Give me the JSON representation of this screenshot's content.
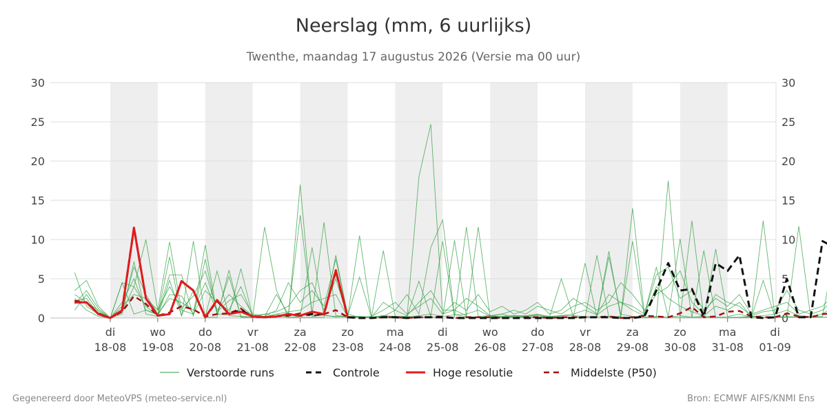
{
  "title": "Neerslag (mm, 6 uurlijks)",
  "subtitle": "Twenthe, maandag 17 augustus 2026 (Versie ma 00 uur)",
  "footer_left": "Gegenereerd door MeteoVPS (meteo-service.nl)",
  "footer_right": "Bron: ECMWF AIFS/KNMI Ens",
  "colors": {
    "ensemble": "#2e9e3e",
    "control": "#111111",
    "high_res": "#e31a1c",
    "median": "#a01010",
    "weekend_band": "#eeeeee",
    "grid": "#dddddd"
  },
  "chart_data": {
    "type": "line",
    "title": "Neerslag (mm, 6 uurlijks)",
    "subtitle": "Twenthe, maandag 17 augustus 2026 (Versie ma 00 uur)",
    "ylim": [
      0,
      30
    ],
    "yticks": [
      0,
      5,
      10,
      15,
      20,
      25,
      30
    ],
    "xlim": [
      "2026-08-17 06:00",
      "2026-09-01 00:00"
    ],
    "x_step_hours": 6,
    "x_start": "2026-08-17 06:00",
    "x_ticks": [
      {
        "day": "di",
        "date": "18-08"
      },
      {
        "day": "wo",
        "date": "19-08"
      },
      {
        "day": "do",
        "date": "20-08"
      },
      {
        "day": "vr",
        "date": "21-08"
      },
      {
        "day": "za",
        "date": "22-08"
      },
      {
        "day": "zo",
        "date": "23-08"
      },
      {
        "day": "ma",
        "date": "24-08"
      },
      {
        "day": "di",
        "date": "25-08"
      },
      {
        "day": "wo",
        "date": "26-08"
      },
      {
        "day": "do",
        "date": "27-08"
      },
      {
        "day": "vr",
        "date": "28-08"
      },
      {
        "day": "za",
        "date": "29-08"
      },
      {
        "day": "zo",
        "date": "30-08"
      },
      {
        "day": "ma",
        "date": "31-08"
      },
      {
        "day": "di",
        "date": "01-09"
      }
    ],
    "shaded_days": [
      "18-08",
      "20-08",
      "22-08",
      "24-08",
      "26-08",
      "28-08",
      "30-08"
    ],
    "legend": [
      "Verstoorde runs",
      "Controle",
      "Hoge resolutie",
      "Middelste (P50)"
    ],
    "legend_position": "bottom",
    "grid": true,
    "series": [
      {
        "name": "Controle",
        "values": [
          2.0,
          2.0,
          0.5,
          0.0,
          1.0,
          11.5,
          2.5,
          0.3,
          0.5,
          4.7,
          3.5,
          0.1,
          2.2,
          0.5,
          1.0,
          0.2,
          0.1,
          0.2,
          0.5,
          0.3,
          0.5,
          0.5,
          6.0,
          0.1,
          0.0,
          0.0,
          0.1,
          0.1,
          0.0,
          0.1,
          0.1,
          0.1,
          0.0,
          0.0,
          0.0,
          0.0,
          0.0,
          0.0,
          0.0,
          0.0,
          0.0,
          0.0,
          0.0,
          0.1,
          0.1,
          0.1,
          0.0,
          0.0,
          0.2,
          3.5,
          7.0,
          3.5,
          3.7,
          0.2,
          7.0,
          6.0,
          8.0,
          0.1,
          0.0,
          0.1,
          5.0,
          0.1,
          0.1,
          9.8,
          9.0,
          0.1
        ]
      },
      {
        "name": "Hoge resolutie",
        "values": [
          2.0,
          2.0,
          0.5,
          0.0,
          1.0,
          11.5,
          2.5,
          0.3,
          0.5,
          4.7,
          3.5,
          0.1,
          2.3,
          0.5,
          0.8,
          0.2,
          0.1,
          0.2,
          0.5,
          0.3,
          0.8,
          0.5,
          6.1,
          0.1
        ]
      },
      {
        "name": "Middelste (P50)",
        "values": [
          2.2,
          2.0,
          0.6,
          0.0,
          0.8,
          2.8,
          1.8,
          0.3,
          0.7,
          1.5,
          1.1,
          0.2,
          0.5,
          0.6,
          1.2,
          0.1,
          0.1,
          0.2,
          0.3,
          0.6,
          0.3,
          0.5,
          1.0,
          0.1,
          0.0,
          0.0,
          0.1,
          0.1,
          0.0,
          0.1,
          0.1,
          0.2,
          0.0,
          0.1,
          0.1,
          0.1,
          0.0,
          0.0,
          0.1,
          0.1,
          0.0,
          0.1,
          0.1,
          0.1,
          0.1,
          0.2,
          0.0,
          0.1,
          0.3,
          0.2,
          0.1,
          0.6,
          1.4,
          0.1,
          0.2,
          0.8,
          0.9,
          0.2,
          0.1,
          0.1,
          0.6,
          0.2,
          0.1,
          0.5,
          0.6,
          0.2
        ]
      }
    ],
    "ensemble_members": [
      [
        5.8,
        1.5,
        0.5,
        0.0,
        4.5,
        4.0,
        10.0,
        1.0,
        9.7,
        1.0,
        0.5,
        9.3,
        0.5,
        0.4,
        6.3,
        0.2,
        11.6,
        3.5,
        0.1,
        17.0,
        0.2,
        0.4,
        0.1,
        0.3,
        5.2,
        0.1,
        0.2,
        1.0,
        3.0,
        0.5,
        9.0,
        12.5,
        0.4,
        0.2,
        0.1,
        0.2,
        0.5,
        0.1,
        0.2,
        0.3,
        0.1,
        5.0,
        0.2,
        0.1,
        0.1,
        7.8,
        0.5,
        0.2,
        0.1,
        0.1,
        17.5,
        0.1,
        12.4,
        0.1,
        8.8,
        0.2,
        0.5,
        0.1,
        12.4,
        0.1,
        0.1,
        11.7,
        0.1,
        0.2,
        8.4,
        0.5
      ],
      [
        3.5,
        4.8,
        1.5,
        0.0,
        1.0,
        6.5,
        3.0,
        0.5,
        5.5,
        5.5,
        0.2,
        7.5,
        0.5,
        5.3,
        0.2,
        0.1,
        0.2,
        3.0,
        0.5,
        13.1,
        0.5,
        12.2,
        0.3,
        0.2,
        10.5,
        0.1,
        0.3,
        0.1,
        0.2,
        4.7,
        0.2,
        9.8,
        0.1,
        11.6,
        0.2,
        0.3,
        0.1,
        0.2,
        0.1,
        0.1,
        0.2,
        0.3,
        0.3,
        0.2,
        0.1,
        8.5,
        0.1,
        14.0,
        0.5,
        6.5,
        0.1,
        0.3,
        0.1,
        8.6,
        0.1,
        0.1,
        0.1,
        0.2,
        0.1,
        0.1,
        0.1,
        0.1,
        0.1,
        0.1,
        0.1,
        0.1
      ],
      [
        1.0,
        3.0,
        0.8,
        0.0,
        0.5,
        7.2,
        0.5,
        0.2,
        4.8,
        0.3,
        3.5,
        0.2,
        6.0,
        0.3,
        0.2,
        0.1,
        0.5,
        0.2,
        0.1,
        0.2,
        9.0,
        0.3,
        0.2,
        0.1,
        0.2,
        0.1,
        0.1,
        0.1,
        0.1,
        18.0,
        24.7,
        0.5,
        1.0,
        0.3,
        11.6,
        0.1,
        0.2,
        0.3,
        0.2,
        0.4,
        0.1,
        0.2,
        0.1,
        7.0,
        0.1,
        0.2,
        0.2,
        9.8,
        0.1,
        0.2,
        0.1,
        10.1,
        0.1,
        0.2,
        0.1,
        0.1,
        0.1,
        0.1,
        4.8,
        0.1,
        0.2,
        0.1,
        0.1,
        0.1,
        0.1,
        0.1
      ],
      [
        2.5,
        1.0,
        0.2,
        0.0,
        4.5,
        0.5,
        1.0,
        0.4,
        7.8,
        0.2,
        9.8,
        0.1,
        0.1,
        6.1,
        0.1,
        0.1,
        0.1,
        0.5,
        0.1,
        0.1,
        0.1,
        0.1,
        8.0,
        0.2,
        0.1,
        0.1,
        8.6,
        0.2,
        0.2,
        0.1,
        0.1,
        0.1,
        9.9,
        0.2,
        0.1,
        0.1,
        0.1,
        0.1,
        0.1,
        0.1,
        0.1,
        0.1,
        0.1,
        0.1,
        8.0,
        0.1,
        0.1,
        0.1,
        0.1,
        0.1,
        0.1,
        0.1,
        0.1,
        0.1,
        0.1,
        0.1,
        0.1,
        0.1,
        0.1,
        0.1,
        0.1,
        0.1,
        0.1,
        0.1,
        0.1,
        0.1
      ],
      [
        3.0,
        2.0,
        1.0,
        0.0,
        2.0,
        5.0,
        1.0,
        0.5,
        2.5,
        2.0,
        1.0,
        4.5,
        0.8,
        2.2,
        3.0,
        0.5,
        0.2,
        1.0,
        4.5,
        2.0,
        3.5,
        1.5,
        7.5,
        0.5,
        0.1,
        0.2,
        1.0,
        2.0,
        0.5,
        1.5,
        2.5,
        0.5,
        2.0,
        1.0,
        3.0,
        0.8,
        1.5,
        0.5,
        1.0,
        2.0,
        0.5,
        1.0,
        2.5,
        1.5,
        0.5,
        3.0,
        2.0,
        1.5,
        0.5,
        5.5,
        6.5,
        2.5,
        3.5,
        1.0,
        2.5,
        1.5,
        3.0,
        0.5,
        1.0,
        1.5,
        2.0,
        0.5,
        1.0,
        1.5,
        3.0,
        2.0
      ],
      [
        1.8,
        3.5,
        1.2,
        0.0,
        1.5,
        3.0,
        2.5,
        1.0,
        4.0,
        1.2,
        2.8,
        6.0,
        1.0,
        3.0,
        1.5,
        0.3,
        0.5,
        0.8,
        1.5,
        3.5,
        4.5,
        1.0,
        5.0,
        0.2,
        0.2,
        0.1,
        2.0,
        1.0,
        0.3,
        2.0,
        3.5,
        1.0,
        1.0,
        2.5,
        1.5,
        0.3,
        0.5,
        1.0,
        0.5,
        1.5,
        1.0,
        0.5,
        1.5,
        2.0,
        1.0,
        2.0,
        4.5,
        3.0,
        1.0,
        3.0,
        4.0,
        6.0,
        2.0,
        0.5,
        3.0,
        2.0,
        1.5,
        0.3,
        0.8,
        1.0,
        3.5,
        1.0,
        0.5,
        1.0,
        2.5,
        1.0
      ],
      [
        2.2,
        2.5,
        0.5,
        0.0,
        0.8,
        4.0,
        1.5,
        0.3,
        3.0,
        2.8,
        0.5,
        3.5,
        2.0,
        1.0,
        4.0,
        0.2,
        0.1,
        0.5,
        0.8,
        1.0,
        2.0,
        2.5,
        3.0,
        0.1,
        0.1,
        0.1,
        0.3,
        0.2,
        0.1,
        0.3,
        0.5,
        0.2,
        0.4,
        0.5,
        1.0,
        0.2,
        0.2,
        0.3,
        0.3,
        0.5,
        0.2,
        0.3,
        0.5,
        1.0,
        0.4,
        1.5,
        2.0,
        1.0,
        0.3,
        4.0,
        2.5,
        1.5,
        0.8,
        0.3,
        1.5,
        1.0,
        2.0,
        0.2,
        0.3,
        0.5,
        1.0,
        0.3,
        0.2,
        0.5,
        1.5,
        0.5
      ]
    ]
  }
}
